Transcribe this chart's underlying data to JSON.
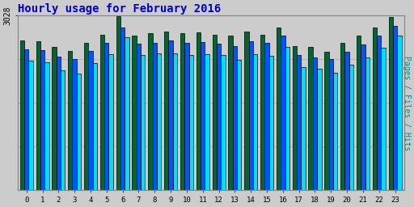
{
  "title": "Hourly usage for February 2016",
  "title_color": "#0000cc",
  "title_fontsize": 10,
  "background_color": "#cccccc",
  "plot_bg_color": "#cccccc",
  "ylabel_right": "Pages / Files / Hits",
  "ylabel_right_color": "#008888",
  "ylim": [
    0,
    3028
  ],
  "ytick_label": "3028",
  "hours": [
    0,
    1,
    2,
    3,
    4,
    5,
    6,
    7,
    8,
    9,
    10,
    11,
    12,
    13,
    14,
    15,
    16,
    17,
    18,
    19,
    20,
    21,
    22,
    23
  ],
  "pages": [
    2600,
    2580,
    2480,
    2420,
    2560,
    2700,
    3020,
    2680,
    2720,
    2750,
    2720,
    2740,
    2700,
    2680,
    2750,
    2700,
    2820,
    2500,
    2480,
    2400,
    2560,
    2680,
    2820,
    3010
  ],
  "files": [
    2450,
    2430,
    2320,
    2270,
    2420,
    2560,
    2820,
    2540,
    2560,
    2600,
    2560,
    2570,
    2540,
    2500,
    2580,
    2560,
    2680,
    2350,
    2310,
    2270,
    2400,
    2530,
    2680,
    2850
  ],
  "hits": [
    2250,
    2220,
    2080,
    2020,
    2200,
    2360,
    2650,
    2350,
    2370,
    2380,
    2340,
    2360,
    2350,
    2260,
    2360,
    2330,
    2480,
    2130,
    2100,
    2040,
    2180,
    2310,
    2470,
    2680
  ],
  "pages_color": "#006633",
  "files_color": "#0055ff",
  "hits_color": "#00ddff",
  "bar_width": 0.27,
  "grid_color": "#bbbbbb"
}
